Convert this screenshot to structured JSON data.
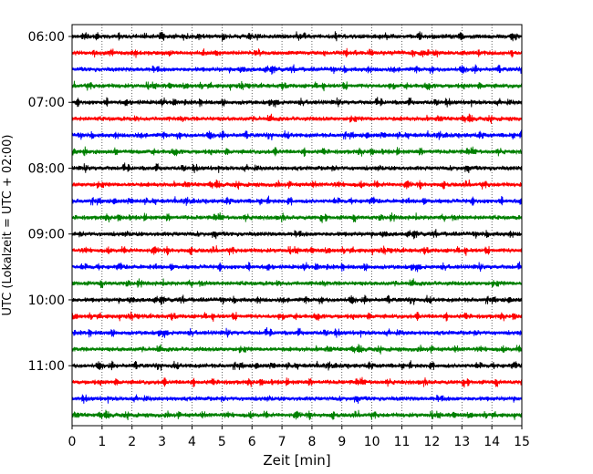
{
  "chart_data": {
    "type": "line",
    "title": "",
    "xlabel": "Zeit  [min]",
    "ylabel": "UTC (Lokalzeit = UTC + 02:00)",
    "xlim": [
      0,
      15
    ],
    "x_ticks": [
      "0",
      "1",
      "2",
      "3",
      "4",
      "5",
      "6",
      "7",
      "8",
      "9",
      "10",
      "11",
      "12",
      "13",
      "14",
      "15"
    ],
    "y_ticks": [
      "06:00",
      "07:00",
      "08:00",
      "09:00",
      "10:00",
      "11:00"
    ],
    "grid": "vertical dotted lines at each minute",
    "colors": [
      "#000000",
      "#ff0000",
      "#0000ff",
      "#008000"
    ],
    "traces": [
      {
        "start": "06:00",
        "color": "#000000"
      },
      {
        "start": "06:15",
        "color": "#ff0000"
      },
      {
        "start": "06:30",
        "color": "#0000ff"
      },
      {
        "start": "06:45",
        "color": "#008000"
      },
      {
        "start": "07:00",
        "color": "#000000"
      },
      {
        "start": "07:15",
        "color": "#ff0000"
      },
      {
        "start": "07:30",
        "color": "#0000ff"
      },
      {
        "start": "07:45",
        "color": "#008000"
      },
      {
        "start": "08:00",
        "color": "#000000"
      },
      {
        "start": "08:15",
        "color": "#ff0000"
      },
      {
        "start": "08:30",
        "color": "#0000ff"
      },
      {
        "start": "08:45",
        "color": "#008000"
      },
      {
        "start": "09:00",
        "color": "#000000"
      },
      {
        "start": "09:15",
        "color": "#ff0000"
      },
      {
        "start": "09:30",
        "color": "#0000ff"
      },
      {
        "start": "09:45",
        "color": "#008000"
      },
      {
        "start": "10:00",
        "color": "#000000"
      },
      {
        "start": "10:15",
        "color": "#ff0000"
      },
      {
        "start": "10:30",
        "color": "#0000ff"
      },
      {
        "start": "10:45",
        "color": "#008000"
      },
      {
        "start": "11:00",
        "color": "#000000"
      },
      {
        "start": "11:15",
        "color": "#ff0000"
      },
      {
        "start": "11:30",
        "color": "#0000ff"
      },
      {
        "start": "11:45",
        "color": "#008000"
      }
    ]
  }
}
